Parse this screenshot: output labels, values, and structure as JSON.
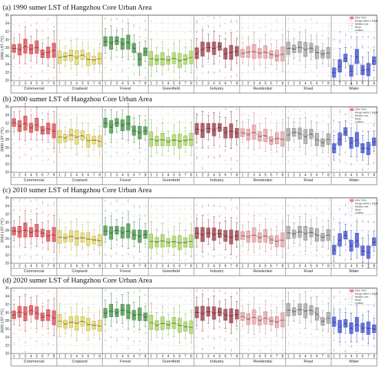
{
  "figure": {
    "categories": [
      "Commercial",
      "Cropland",
      "Forest",
      "Greenfield",
      "Industry",
      "Residential",
      "Road",
      "Water"
    ],
    "category_colors": [
      "#e8474f",
      "#e8d95a",
      "#3f9a3f",
      "#a8dc5a",
      "#a33a44",
      "#f0a0a6",
      "#a6a6a6",
      "#3b4fe0"
    ],
    "legend": [
      "25%~75%",
      "Range within 1.5IQR",
      "Median Line",
      "Mean",
      "Outliers"
    ]
  },
  "chart_data": [
    {
      "type": "box",
      "title": "(a) 1990 sumer LST of Hangzhou Core Urban Area",
      "ylabel": "1990 LST (℃)",
      "ylim": [
        20,
        36
      ],
      "yticks": [
        20,
        22,
        24,
        26,
        28,
        30,
        32,
        34,
        36
      ],
      "x_tick_labels": [
        "1",
        "2",
        "3",
        "4",
        "5",
        "6",
        "7",
        "8"
      ],
      "medians": [
        [
          27.8,
          27.5,
          28.3,
          27.6,
          28.1,
          26.5,
          26.8,
          27.3
        ],
        [
          25.6,
          25.8,
          26.1,
          25.5,
          26.2,
          25.1,
          24.9,
          25.3
        ],
        [
          29.5,
          29.1,
          29.7,
          28.9,
          29.3,
          27.9,
          25.1,
          27.0
        ],
        [
          25.3,
          25.0,
          25.2,
          24.9,
          25.4,
          24.8,
          25.1,
          25.6
        ],
        [
          26.6,
          27.6,
          28.1,
          27.8,
          28.3,
          26.5,
          26.8,
          27.1
        ],
        [
          26.6,
          26.9,
          27.0,
          26.6,
          26.9,
          26.3,
          26.0,
          26.4
        ],
        [
          27.8,
          27.7,
          28.1,
          27.5,
          27.9,
          26.8,
          26.4,
          26.7
        ],
        [
          21.9,
          23.5,
          25.5,
          22.3,
          25.8,
          22.5,
          22.6,
          24.8
        ]
      ]
    },
    {
      "type": "box",
      "title": "(b) 2000 sumer LST of Hangzhou Core Urban Area",
      "ylabel": "2000 LST (℃)",
      "ylim": [
        20,
        36
      ],
      "yticks": [
        20,
        22,
        24,
        26,
        28,
        30,
        32,
        34,
        36
      ],
      "x_tick_labels": [
        "1",
        "2",
        "3",
        "4",
        "5",
        "6",
        "7",
        "8"
      ],
      "medians": [
        [
          32.1,
          31.2,
          31.9,
          30.8,
          31.6,
          30.2,
          30.6,
          30.0
        ],
        [
          28.6,
          28.3,
          29.1,
          28.5,
          28.9,
          27.6,
          27.8,
          27.5
        ],
        [
          32.0,
          31.0,
          32.1,
          31.4,
          31.9,
          30.1,
          29.6,
          30.1
        ],
        [
          28.0,
          27.6,
          27.9,
          27.4,
          27.8,
          27.5,
          27.7,
          27.9
        ],
        [
          30.5,
          30.1,
          30.7,
          30.3,
          30.9,
          29.6,
          30.0,
          29.5
        ],
        [
          29.6,
          29.1,
          29.7,
          28.7,
          28.9,
          27.7,
          28.2,
          28.0
        ],
        [
          29.1,
          29.7,
          29.4,
          28.6,
          29.3,
          27.9,
          27.2,
          28.0
        ],
        [
          25.8,
          28.0,
          29.9,
          27.1,
          27.9,
          25.8,
          25.7,
          27.4
        ]
      ]
    },
    {
      "type": "box",
      "title": "(c) 2010 sumer LST of Hangzhou Core Urban Area",
      "ylabel": "2010 LST (℃)",
      "ylim": [
        20,
        36
      ],
      "yticks": [
        20,
        22,
        24,
        26,
        28,
        30,
        32,
        34,
        36
      ],
      "x_tick_labels": [
        "1",
        "2",
        "3",
        "4",
        "5",
        "6",
        "7",
        "8"
      ],
      "medians": [
        [
          27.8,
          27.6,
          28.0,
          27.5,
          27.9,
          27.3,
          26.6,
          26.9
        ],
        [
          26.3,
          26.1,
          26.5,
          26.0,
          26.2,
          25.8,
          25.6,
          25.5
        ],
        [
          27.9,
          27.3,
          28.0,
          27.4,
          27.8,
          26.9,
          26.5,
          27.0
        ],
        [
          25.3,
          25.1,
          25.4,
          25.0,
          25.2,
          24.9,
          25.0,
          25.3
        ],
        [
          27.3,
          26.9,
          27.4,
          27.0,
          27.2,
          26.6,
          26.3,
          26.7
        ],
        [
          26.7,
          26.4,
          26.8,
          26.2,
          26.6,
          25.7,
          25.3,
          25.6
        ],
        [
          27.4,
          27.1,
          27.6,
          27.2,
          27.5,
          26.8,
          26.3,
          26.8
        ],
        [
          23.2,
          25.6,
          26.8,
          24.2,
          25.5,
          23.0,
          22.6,
          25.2
        ]
      ]
    },
    {
      "type": "box",
      "title": "(d) 2020 sumer LST of Hangzhou Core Urban Area",
      "ylabel": "2020 LST (℃)",
      "ylim": [
        20,
        36
      ],
      "yticks": [
        20,
        22,
        24,
        26,
        28,
        30,
        32,
        34,
        36
      ],
      "x_tick_labels": [
        "1",
        "2",
        "3",
        "4",
        "5",
        "6",
        "7",
        "8"
      ],
      "medians": [
        [
          29.4,
          30.1,
          29.6,
          30.5,
          29.8,
          28.9,
          29.3,
          28.6
        ],
        [
          27.9,
          27.1,
          27.6,
          27.3,
          27.8,
          27.0,
          26.8,
          26.7
        ],
        [
          29.8,
          30.4,
          29.9,
          30.6,
          30.1,
          29.3,
          29.5,
          28.9
        ],
        [
          27.5,
          26.8,
          27.3,
          26.9,
          27.4,
          26.8,
          26.5,
          26.3
        ],
        [
          30.0,
          29.7,
          30.2,
          29.8,
          30.1,
          29.4,
          29.1,
          29.5
        ],
        [
          29.0,
          28.3,
          28.8,
          28.0,
          28.6,
          27.9,
          27.6,
          28.1
        ],
        [
          30.6,
          30.2,
          30.7,
          30.3,
          30.5,
          29.6,
          27.8,
          28.6
        ],
        [
          27.7,
          26.5,
          27.3,
          26.1,
          27.0,
          26.2,
          26.1,
          26.0
        ]
      ]
    }
  ]
}
